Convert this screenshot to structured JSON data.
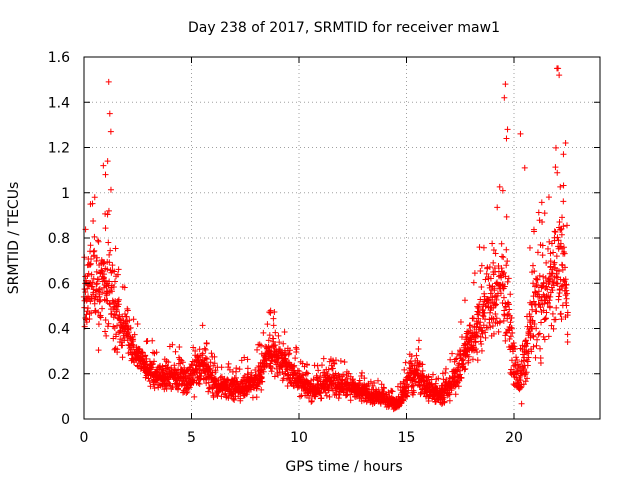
{
  "chart_data": {
    "type": "scatter",
    "title": "Day 238 of 2017, SRMTID for receiver maw1",
    "xlabel": "GPS time / hours",
    "ylabel": "SRMTID / TECUs",
    "xlim": [
      0,
      24
    ],
    "ylim": [
      0,
      1.6
    ],
    "xticks": [
      0,
      5,
      10,
      15,
      20
    ],
    "yticks": [
      0,
      0.2,
      0.4,
      0.6,
      0.8,
      1,
      1.2,
      1.4,
      1.6
    ],
    "xtick_labels": [
      "0",
      "5",
      "10",
      "15",
      "20"
    ],
    "ytick_labels": [
      "0",
      "0.2",
      "0.4",
      "0.6",
      "0.8",
      "1",
      "1.2",
      "1.4",
      "1.6"
    ],
    "grid": true,
    "marker": "+",
    "color": "#ff0000",
    "envelope_note": "approximate series read from the plotted point cloud; each x has a spread of points around these values",
    "series": [
      {
        "name": "SRMTID maw1",
        "x": [
          0,
          0.25,
          0.5,
          0.75,
          1.0,
          1.25,
          1.5,
          1.75,
          2.0,
          2.25,
          2.5,
          2.75,
          3.0,
          3.25,
          3.5,
          3.75,
          4.0,
          4.25,
          4.5,
          4.75,
          5.0,
          5.25,
          5.5,
          5.75,
          6.0,
          6.25,
          6.5,
          6.75,
          7.0,
          7.25,
          7.5,
          7.75,
          8.0,
          8.25,
          8.5,
          8.75,
          9.0,
          9.25,
          9.5,
          9.75,
          10.0,
          10.25,
          10.5,
          10.75,
          11.0,
          11.25,
          11.5,
          11.75,
          12.0,
          12.25,
          12.5,
          12.75,
          13.0,
          13.25,
          13.5,
          13.75,
          14.0,
          14.25,
          14.5,
          14.75,
          15.0,
          15.25,
          15.5,
          15.75,
          16.0,
          16.25,
          16.5,
          16.75,
          17.0,
          17.25,
          17.5,
          17.75,
          18.0,
          18.25,
          18.5,
          18.75,
          19.0,
          19.25,
          19.5,
          19.75,
          20.0,
          20.25,
          20.5,
          20.75,
          21.0,
          21.25,
          21.5,
          21.75,
          22.0,
          22.25,
          22.5
        ],
        "center": [
          0.5,
          0.6,
          0.62,
          0.55,
          0.6,
          0.62,
          0.45,
          0.38,
          0.4,
          0.32,
          0.28,
          0.25,
          0.22,
          0.2,
          0.18,
          0.18,
          0.19,
          0.18,
          0.2,
          0.17,
          0.18,
          0.22,
          0.24,
          0.2,
          0.16,
          0.14,
          0.15,
          0.14,
          0.13,
          0.14,
          0.15,
          0.16,
          0.17,
          0.2,
          0.28,
          0.3,
          0.27,
          0.25,
          0.24,
          0.2,
          0.18,
          0.15,
          0.13,
          0.13,
          0.14,
          0.16,
          0.18,
          0.16,
          0.15,
          0.14,
          0.14,
          0.12,
          0.12,
          0.11,
          0.1,
          0.1,
          0.09,
          0.08,
          0.07,
          0.08,
          0.14,
          0.2,
          0.2,
          0.17,
          0.14,
          0.12,
          0.11,
          0.12,
          0.14,
          0.18,
          0.25,
          0.3,
          0.35,
          0.4,
          0.45,
          0.5,
          0.52,
          0.55,
          0.6,
          0.45,
          0.25,
          0.15,
          0.25,
          0.4,
          0.5,
          0.48,
          0.55,
          0.62,
          0.7,
          0.65,
          0.55
        ],
        "spread": [
          0.22,
          0.25,
          0.28,
          0.28,
          0.3,
          0.35,
          0.22,
          0.15,
          0.12,
          0.1,
          0.09,
          0.09,
          0.09,
          0.09,
          0.08,
          0.09,
          0.1,
          0.09,
          0.09,
          0.08,
          0.1,
          0.12,
          0.12,
          0.1,
          0.08,
          0.07,
          0.07,
          0.07,
          0.07,
          0.07,
          0.08,
          0.08,
          0.09,
          0.1,
          0.13,
          0.14,
          0.12,
          0.12,
          0.11,
          0.1,
          0.09,
          0.08,
          0.07,
          0.07,
          0.07,
          0.08,
          0.09,
          0.08,
          0.08,
          0.07,
          0.07,
          0.06,
          0.06,
          0.06,
          0.05,
          0.05,
          0.05,
          0.04,
          0.04,
          0.05,
          0.1,
          0.12,
          0.11,
          0.09,
          0.08,
          0.07,
          0.06,
          0.07,
          0.08,
          0.1,
          0.13,
          0.15,
          0.17,
          0.2,
          0.22,
          0.25,
          0.28,
          0.3,
          0.32,
          0.25,
          0.15,
          0.1,
          0.18,
          0.25,
          0.3,
          0.3,
          0.32,
          0.35,
          0.35,
          0.32,
          0.25
        ]
      }
    ],
    "outliers": {
      "x": [
        1.15,
        1.2,
        1.25,
        1.1,
        19.6,
        19.55,
        19.7,
        19.65,
        20.3,
        20.5,
        22.05,
        22.1,
        22.0,
        22.4,
        22.3,
        0.5,
        0.3,
        0.9,
        1.0
      ],
      "y": [
        1.49,
        1.35,
        1.27,
        1.14,
        1.48,
        1.42,
        1.28,
        1.24,
        1.26,
        1.11,
        1.55,
        1.52,
        1.55,
        1.22,
        1.17,
        0.98,
        0.95,
        1.12,
        1.08
      ]
    }
  }
}
